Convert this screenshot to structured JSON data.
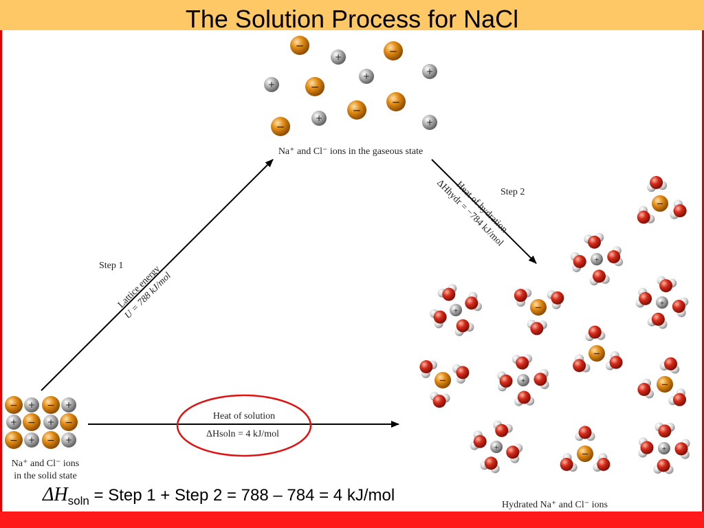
{
  "slide": {
    "title": "The Solution Process for NaCl"
  },
  "diagram": {
    "gaseous_label": "Na⁺ and Cl⁻ ions in the gaseous state",
    "solid_label_line1": "Na⁺ and Cl⁻ ions",
    "solid_label_line2": "in the solid state",
    "hydrated_label": "Hydrated Na⁺ and Cl⁻ ions",
    "step1": {
      "label": "Step 1",
      "line1": "Lattice energy",
      "line2": "U = 788 kJ/mol"
    },
    "step2": {
      "label": "Step 2",
      "line1": "Heat of hydration",
      "line2": "ΔHhydr = −784 kJ/mol"
    },
    "solution": {
      "line1": "Heat of solution",
      "line2": "ΔHsoln = 4 kJ/mol"
    },
    "ion_signs": {
      "cation": "+",
      "anion": "−"
    },
    "colors": {
      "cation": "#9a9a9a",
      "anion": "#d9820f",
      "oxygen": "#d42a1a",
      "hydrogen": "#d8d8d8",
      "highlight": "#e01010",
      "arrow": "#000000"
    }
  },
  "equation": {
    "lhs_symbol": "ΔH",
    "lhs_sub": "soln",
    "rhs": "= Step 1 + Step 2 = 788 – 784 = 4 kJ/mol"
  }
}
